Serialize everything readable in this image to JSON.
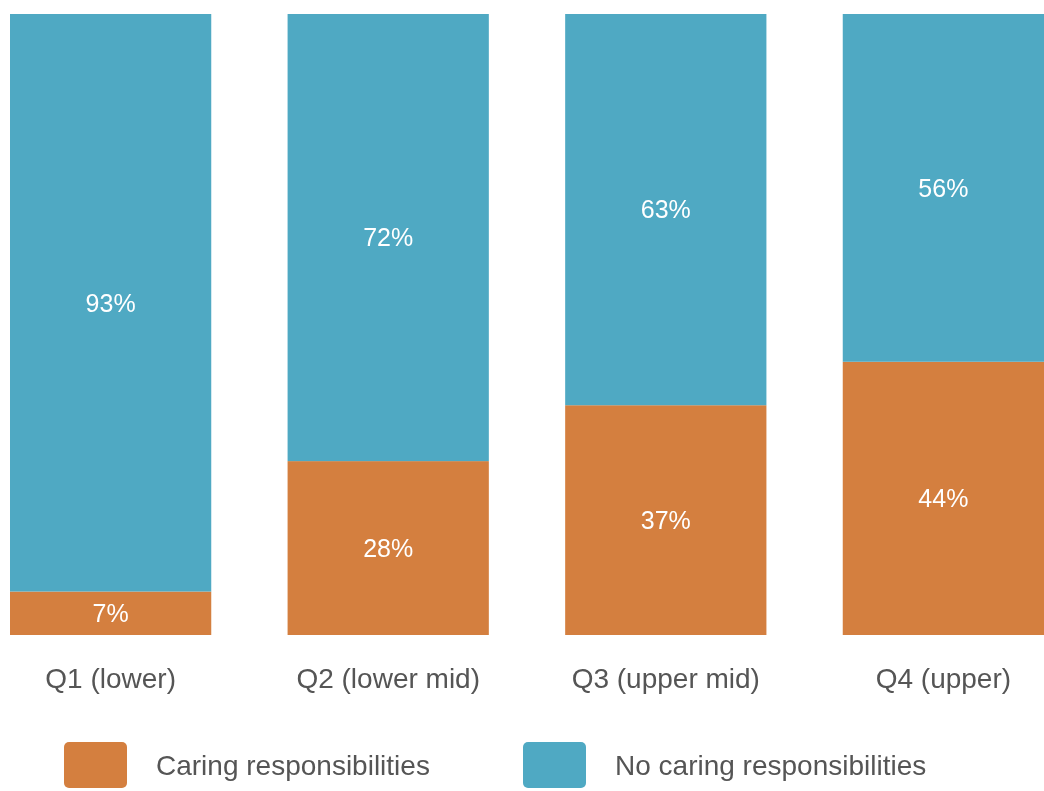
{
  "chart_data": {
    "type": "bar",
    "stacked": true,
    "categories": [
      "Q1 (lower)",
      "Q2 (lower mid)",
      "Q3 (upper mid)",
      "Q4 (upper)"
    ],
    "series": [
      {
        "name": "Caring responsibilities",
        "color": "#d47f3f",
        "values": [
          7,
          28,
          37,
          44
        ],
        "value_labels": [
          "7%",
          "28%",
          "37%",
          "44%"
        ]
      },
      {
        "name": "No caring responsibilities",
        "color": "#4fa9c3",
        "values": [
          93,
          72,
          63,
          56
        ],
        "value_labels": [
          "93%",
          "72%",
          "63%",
          "56%"
        ]
      }
    ],
    "legend": "bottom",
    "tick_labels": "x"
  }
}
